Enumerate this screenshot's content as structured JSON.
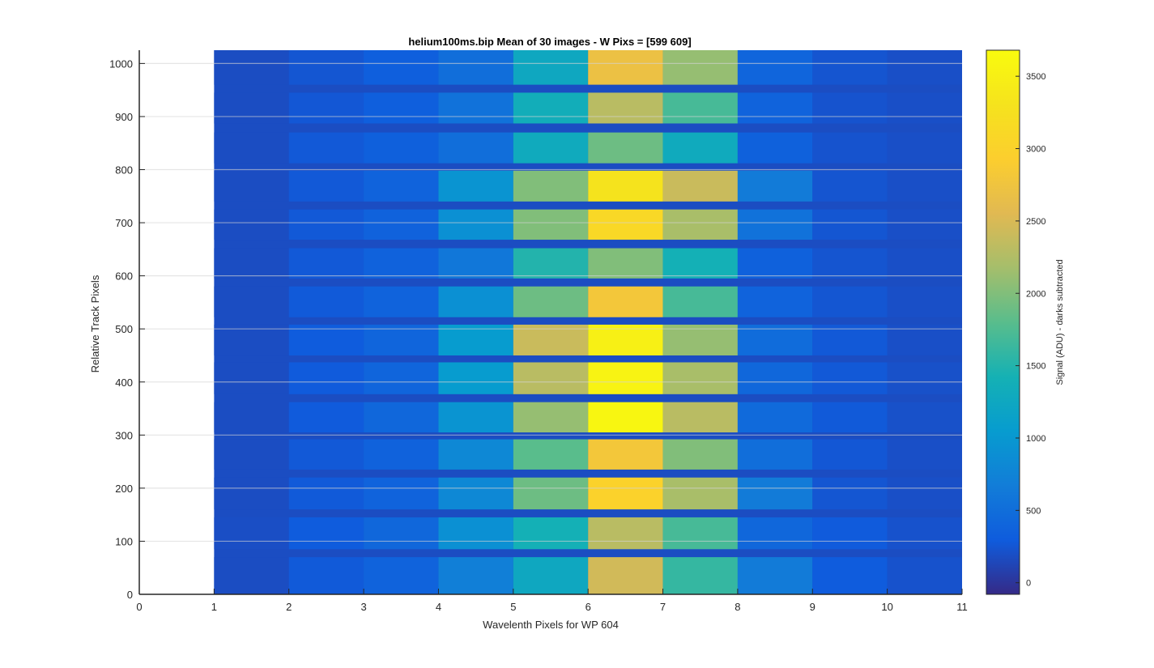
{
  "chart_data": {
    "type": "heatmap",
    "title": "helium100ms.bip  Mean of 30 images - W Pixs = [599  609]",
    "xlabel": "Wavelenth Pixels for WP 604",
    "ylabel": "Relative Track Pixels",
    "colorbar_label": "Signal (ADU) - darks subtracted",
    "xlim": [
      0,
      11
    ],
    "ylim": [
      0,
      1025
    ],
    "clim": [
      -80,
      3680
    ],
    "colormap": "parula",
    "grid": "horizontal",
    "xticks": [
      "0",
      "1",
      "2",
      "3",
      "4",
      "5",
      "6",
      "7",
      "8",
      "9",
      "10",
      "11"
    ],
    "yticks": [
      "0",
      "100",
      "200",
      "300",
      "400",
      "500",
      "600",
      "700",
      "800",
      "900",
      "1000"
    ],
    "colorbar_ticks": [
      "0",
      "500",
      "1000",
      "1500",
      "2000",
      "2500",
      "3000",
      "3500"
    ],
    "columns_x": [
      1.5,
      2.5,
      3.5,
      4.5,
      5.5,
      6.5,
      7.5,
      8.5,
      9.5,
      10.5
    ],
    "band_gap_value": 180,
    "bands": [
      {
        "y0": 0,
        "y1": 70,
        "values": [
          180,
          280,
          380,
          700,
          1250,
          2450,
          1600,
          650,
          300,
          220
        ]
      },
      {
        "y0": 85,
        "y1": 145,
        "values": [
          190,
          300,
          420,
          900,
          1400,
          2300,
          1700,
          420,
          290,
          220
        ]
      },
      {
        "y0": 160,
        "y1": 220,
        "values": [
          180,
          280,
          380,
          800,
          1900,
          3000,
          2200,
          650,
          250,
          200
        ]
      },
      {
        "y0": 235,
        "y1": 292,
        "values": [
          180,
          270,
          360,
          800,
          1800,
          2800,
          2000,
          500,
          260,
          200
        ]
      },
      {
        "y0": 305,
        "y1": 362,
        "values": [
          180,
          290,
          420,
          950,
          2100,
          3600,
          2300,
          450,
          280,
          210
        ]
      },
      {
        "y0": 377,
        "y1": 437,
        "values": [
          180,
          290,
          400,
          1050,
          2300,
          3550,
          2200,
          420,
          270,
          210
        ]
      },
      {
        "y0": 450,
        "y1": 508,
        "values": [
          180,
          300,
          400,
          1050,
          2400,
          3500,
          2100,
          480,
          270,
          200
        ]
      },
      {
        "y0": 522,
        "y1": 580,
        "values": [
          180,
          280,
          380,
          900,
          1900,
          2800,
          1700,
          380,
          250,
          200
        ]
      },
      {
        "y0": 595,
        "y1": 652,
        "values": [
          180,
          270,
          360,
          600,
          1500,
          2000,
          1400,
          350,
          240,
          200
        ]
      },
      {
        "y0": 668,
        "y1": 725,
        "values": [
          180,
          270,
          360,
          900,
          2000,
          3100,
          2200,
          550,
          250,
          200
        ]
      },
      {
        "y0": 740,
        "y1": 798,
        "values": [
          180,
          270,
          380,
          950,
          2000,
          3300,
          2400,
          650,
          240,
          200
        ]
      },
      {
        "y0": 812,
        "y1": 870,
        "values": [
          180,
          270,
          340,
          500,
          1300,
          1900,
          1300,
          350,
          230,
          200
        ]
      },
      {
        "y0": 887,
        "y1": 945,
        "values": [
          180,
          260,
          330,
          550,
          1350,
          2300,
          1700,
          380,
          230,
          200
        ]
      },
      {
        "y0": 960,
        "y1": 1025,
        "values": [
          180,
          250,
          330,
          500,
          1250,
          2700,
          2100,
          400,
          240,
          200
        ]
      }
    ]
  }
}
